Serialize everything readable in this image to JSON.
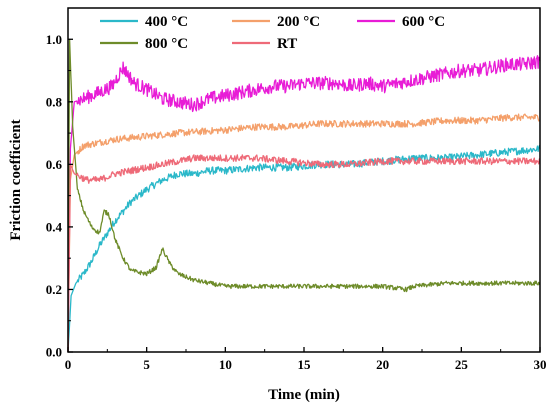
{
  "chart_data": {
    "type": "line",
    "xlabel": "Time (min)",
    "ylabel": "Friction coefficient",
    "xlim": [
      0,
      30
    ],
    "ylim": [
      0,
      1.1
    ],
    "xticks": [
      "0",
      "5",
      "10",
      "15",
      "20",
      "25",
      "30"
    ],
    "yticks": [
      "0.0",
      "0.2",
      "0.4",
      "0.6",
      "0.8",
      "1.0"
    ],
    "grid": false,
    "legend_position": "top",
    "series": [
      {
        "name": "400 °C",
        "color": "#2bb8c9",
        "x": [
          0,
          0.2,
          0.5,
          1,
          1.5,
          2,
          3,
          4,
          5,
          6,
          7,
          8,
          9,
          10,
          12,
          14,
          16,
          18,
          20,
          22,
          24,
          26,
          28,
          30
        ],
        "y": [
          0.0,
          0.18,
          0.22,
          0.25,
          0.29,
          0.34,
          0.42,
          0.48,
          0.52,
          0.55,
          0.57,
          0.57,
          0.58,
          0.58,
          0.59,
          0.59,
          0.6,
          0.6,
          0.61,
          0.62,
          0.62,
          0.63,
          0.64,
          0.65
        ]
      },
      {
        "name": "200 °C",
        "color": "#f4a06b",
        "x": [
          0,
          0.15,
          0.4,
          1,
          2,
          3,
          5,
          7,
          10,
          12,
          14,
          16,
          18,
          20,
          22,
          24,
          26,
          28,
          30
        ],
        "y": [
          0.0,
          0.55,
          0.63,
          0.66,
          0.67,
          0.68,
          0.69,
          0.7,
          0.71,
          0.72,
          0.72,
          0.73,
          0.73,
          0.73,
          0.73,
          0.74,
          0.74,
          0.75,
          0.75
        ]
      },
      {
        "name": "600 °C",
        "color": "#e81cd6",
        "x": [
          0,
          0.15,
          0.4,
          1,
          2,
          2.8,
          3.5,
          4.2,
          5,
          6,
          7,
          8,
          9,
          10,
          11,
          12,
          13,
          14,
          15,
          16,
          17,
          18,
          19,
          20,
          21,
          22,
          23,
          24,
          25,
          26,
          27,
          28,
          29,
          30
        ],
        "y": [
          0.0,
          0.65,
          0.8,
          0.81,
          0.83,
          0.85,
          0.91,
          0.86,
          0.84,
          0.81,
          0.8,
          0.79,
          0.81,
          0.82,
          0.83,
          0.84,
          0.85,
          0.85,
          0.86,
          0.86,
          0.86,
          0.85,
          0.86,
          0.85,
          0.86,
          0.87,
          0.88,
          0.89,
          0.9,
          0.9,
          0.91,
          0.92,
          0.92,
          0.93
        ]
      },
      {
        "name": "800 °C",
        "color": "#6e8c2a",
        "x": [
          0,
          0.1,
          0.3,
          0.6,
          1,
          1.5,
          2,
          2.3,
          2.6,
          3,
          3.5,
          4,
          5,
          5.6,
          6,
          6.5,
          7,
          8,
          9,
          10,
          12,
          14,
          16,
          18,
          20,
          21.5,
          22,
          24,
          26,
          28,
          30
        ],
        "y": [
          0.0,
          1.0,
          0.72,
          0.52,
          0.45,
          0.4,
          0.38,
          0.45,
          0.44,
          0.36,
          0.3,
          0.26,
          0.25,
          0.27,
          0.33,
          0.28,
          0.25,
          0.23,
          0.22,
          0.21,
          0.21,
          0.21,
          0.21,
          0.21,
          0.21,
          0.2,
          0.21,
          0.22,
          0.22,
          0.22,
          0.22
        ]
      },
      {
        "name": "RT",
        "color": "#ee6a78",
        "x": [
          0,
          0.15,
          0.4,
          0.8,
          1.2,
          2,
          3,
          4,
          5,
          6,
          7,
          8,
          10,
          12,
          14,
          16,
          18,
          20,
          22,
          24,
          26,
          28,
          30
        ],
        "y": [
          0.0,
          0.6,
          0.57,
          0.56,
          0.55,
          0.55,
          0.57,
          0.58,
          0.59,
          0.6,
          0.61,
          0.62,
          0.62,
          0.62,
          0.61,
          0.6,
          0.6,
          0.61,
          0.61,
          0.61,
          0.61,
          0.61,
          0.61
        ]
      }
    ]
  }
}
